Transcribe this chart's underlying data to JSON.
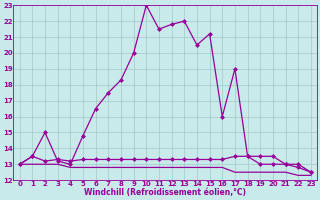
{
  "x": [
    0,
    1,
    2,
    3,
    4,
    5,
    6,
    7,
    8,
    9,
    10,
    11,
    12,
    13,
    14,
    15,
    16,
    17,
    18,
    19,
    20,
    21,
    22,
    23
  ],
  "line1": [
    13.0,
    13.5,
    15.0,
    13.2,
    13.0,
    14.8,
    16.5,
    17.5,
    18.3,
    20.0,
    23.0,
    21.5,
    21.8,
    22.0,
    20.5,
    21.2,
    16.0,
    19.0,
    13.5,
    13.0,
    13.0,
    13.0,
    12.8,
    12.5
  ],
  "line2": [
    13.0,
    13.5,
    13.2,
    13.3,
    13.2,
    13.3,
    13.3,
    13.3,
    13.3,
    13.3,
    13.3,
    13.3,
    13.3,
    13.3,
    13.3,
    13.3,
    13.3,
    13.5,
    13.5,
    13.5,
    13.5,
    13.0,
    13.0,
    12.5
  ],
  "line3": [
    13.0,
    13.0,
    13.0,
    13.0,
    12.8,
    12.8,
    12.8,
    12.8,
    12.8,
    12.8,
    12.8,
    12.8,
    12.8,
    12.8,
    12.8,
    12.8,
    12.8,
    12.5,
    12.5,
    12.5,
    12.5,
    12.5,
    12.3,
    12.3
  ],
  "line_color": "#990099",
  "bg_color": "#c8eaea",
  "grid_color": "#a0c8c8",
  "xlabel": "Windchill (Refroidissement éolien,°C)",
  "ylim": [
    12,
    23
  ],
  "xlim": [
    -0.5,
    23.5
  ],
  "yticks": [
    12,
    13,
    14,
    15,
    16,
    17,
    18,
    19,
    20,
    21,
    22,
    23
  ],
  "xticks": [
    0,
    1,
    2,
    3,
    4,
    5,
    6,
    7,
    8,
    9,
    10,
    11,
    12,
    13,
    14,
    15,
    16,
    17,
    18,
    19,
    20,
    21,
    22,
    23
  ],
  "marker": "D",
  "markersize": 2.0,
  "linewidth": 0.9,
  "label_fontsize": 5.5,
  "tick_fontsize": 5.0
}
